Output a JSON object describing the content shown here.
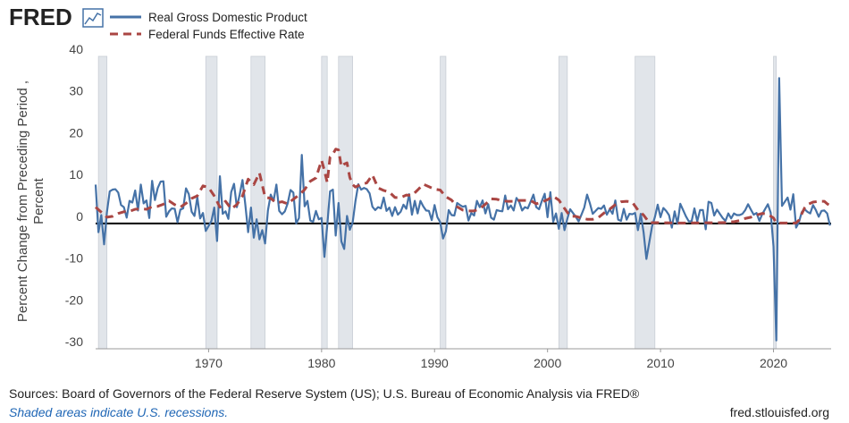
{
  "chart_data": {
    "type": "line",
    "logo": "FRED",
    "ylabel_lines": [
      "Percent Change from Preceding Period ,",
      "Percent"
    ],
    "source": "Sources: Board of Governors of the Federal Reserve System (US); U.S. Bureau of Economic Analysis via FRED®",
    "note": "Shaded areas indicate U.S. recessions.",
    "url": "fred.stlouisfed.org",
    "xlim": [
      1960,
      2025.1
    ],
    "xticks": [
      1970,
      1980,
      1990,
      2000,
      2010,
      2020
    ],
    "ylim": [
      -30,
      40
    ],
    "yticks": [
      -30,
      -20,
      -10,
      0,
      10,
      20,
      30,
      40
    ],
    "zero_line": true,
    "recession_color": "#e1e5ea",
    "recessions": [
      [
        1960.25,
        1961.0
      ],
      [
        1969.75,
        1970.75
      ],
      [
        1973.75,
        1975.0
      ],
      [
        1980.0,
        1980.5
      ],
      [
        1981.5,
        1982.75
      ],
      [
        1990.5,
        1991.0
      ],
      [
        2001.0,
        2001.75
      ],
      [
        2007.75,
        2009.5
      ],
      [
        2020.0,
        2020.25
      ]
    ],
    "series": [
      {
        "name": "Real Gross Domestic Product",
        "color": "#4572a7",
        "dashed": false,
        "x": [
          1960,
          1960.25,
          1960.5,
          1960.75,
          1961,
          1961.25,
          1961.5,
          1961.75,
          1962,
          1962.25,
          1962.5,
          1962.75,
          1963,
          1963.25,
          1963.5,
          1963.75,
          1964,
          1964.25,
          1964.5,
          1964.75,
          1965,
          1965.25,
          1965.5,
          1965.75,
          1966,
          1966.25,
          1966.5,
          1966.75,
          1967,
          1967.25,
          1967.5,
          1967.75,
          1968,
          1968.25,
          1968.5,
          1968.75,
          1969,
          1969.25,
          1969.5,
          1969.75,
          1970,
          1970.25,
          1970.5,
          1970.75,
          1971,
          1971.25,
          1971.5,
          1971.75,
          1972,
          1972.25,
          1972.5,
          1972.75,
          1973,
          1973.25,
          1973.5,
          1973.75,
          1974,
          1974.25,
          1974.5,
          1974.75,
          1975,
          1975.25,
          1975.5,
          1975.75,
          1976,
          1976.25,
          1976.5,
          1976.75,
          1977,
          1977.25,
          1977.5,
          1977.75,
          1978,
          1978.25,
          1978.5,
          1978.75,
          1979,
          1979.25,
          1979.5,
          1979.75,
          1980,
          1980.25,
          1980.5,
          1980.75,
          1981,
          1981.25,
          1981.5,
          1981.75,
          1982,
          1982.25,
          1982.5,
          1982.75,
          1983,
          1983.25,
          1983.5,
          1983.75,
          1984,
          1984.25,
          1984.5,
          1984.75,
          1985,
          1985.25,
          1985.5,
          1985.75,
          1986,
          1986.25,
          1986.5,
          1986.75,
          1987,
          1987.25,
          1987.5,
          1987.75,
          1988,
          1988.25,
          1988.5,
          1988.75,
          1989,
          1989.25,
          1989.5,
          1989.75,
          1990,
          1990.25,
          1990.5,
          1990.75,
          1991,
          1991.25,
          1991.5,
          1991.75,
          1992,
          1992.25,
          1992.5,
          1992.75,
          1993,
          1993.25,
          1993.5,
          1993.75,
          1994,
          1994.25,
          1994.5,
          1994.75,
          1995,
          1995.25,
          1995.5,
          1995.75,
          1996,
          1996.25,
          1996.5,
          1996.75,
          1997,
          1997.25,
          1997.5,
          1997.75,
          1998,
          1998.25,
          1998.5,
          1998.75,
          1999,
          1999.25,
          1999.5,
          1999.75,
          2000,
          2000.25,
          2000.5,
          2000.75,
          2001,
          2001.25,
          2001.5,
          2001.75,
          2002,
          2002.25,
          2002.5,
          2002.75,
          2003,
          2003.25,
          2003.5,
          2003.75,
          2004,
          2004.25,
          2004.5,
          2004.75,
          2005,
          2005.25,
          2005.5,
          2005.75,
          2006,
          2006.25,
          2006.5,
          2006.75,
          2007,
          2007.25,
          2007.5,
          2007.75,
          2008,
          2008.25,
          2008.5,
          2008.75,
          2009,
          2009.25,
          2009.5,
          2009.75,
          2010,
          2010.25,
          2010.5,
          2010.75,
          2011,
          2011.25,
          2011.5,
          2011.75,
          2012,
          2012.25,
          2012.5,
          2012.75,
          2013,
          2013.25,
          2013.5,
          2013.75,
          2014,
          2014.25,
          2014.5,
          2014.75,
          2015,
          2015.25,
          2015.5,
          2015.75,
          2016,
          2016.25,
          2016.5,
          2016.75,
          2017,
          2017.25,
          2017.5,
          2017.75,
          2018,
          2018.25,
          2018.5,
          2018.75,
          2019,
          2019.25,
          2019.5,
          2019.75,
          2020,
          2020.25,
          2020.5,
          2020.75,
          2021,
          2021.25,
          2021.5,
          2021.75,
          2022,
          2022.25,
          2022.5,
          2022.75,
          2023,
          2023.25,
          2023.5,
          2023.75,
          2024,
          2024.25,
          2024.5,
          2024.75,
          2025
        ],
        "values": [
          9.3,
          -2.1,
          2.0,
          -5.0,
          2.7,
          7.7,
          8.1,
          8.2,
          7.4,
          4.4,
          3.9,
          1.4,
          5.4,
          5.0,
          7.9,
          3.1,
          9.3,
          4.8,
          5.5,
          1.3,
          10.2,
          5.6,
          8.5,
          10.0,
          10.1,
          1.6,
          2.9,
          3.6,
          3.5,
          0.3,
          3.3,
          3.6,
          8.4,
          7.0,
          2.8,
          1.8,
          6.3,
          1.2,
          2.5,
          -1.8,
          -0.6,
          0.6,
          3.8,
          -4.2,
          11.3,
          2.3,
          2.9,
          1.1,
          7.5,
          9.5,
          3.9,
          6.9,
          10.4,
          4.5,
          -2.1,
          3.8,
          -3.4,
          1.0,
          -3.8,
          -1.6,
          -4.8,
          3.1,
          6.9,
          5.4,
          9.3,
          3.0,
          2.2,
          2.9,
          4.8,
          8.0,
          7.4,
          0.0,
          1.3,
          16.4,
          4.1,
          5.4,
          0.7,
          0.4,
          3.0,
          1.0,
          1.3,
          -8.0,
          -0.5,
          7.7,
          8.1,
          -2.9,
          4.9,
          -4.3,
          -6.1,
          1.8,
          -1.5,
          0.2,
          5.4,
          9.4,
          8.1,
          8.5,
          8.2,
          7.2,
          4.0,
          3.2,
          3.9,
          3.6,
          6.2,
          3.0,
          3.8,
          1.8,
          3.9,
          2.1,
          2.8,
          4.5,
          3.5,
          7.0,
          2.1,
          5.4,
          2.4,
          5.4,
          4.1,
          3.1,
          3.0,
          0.8,
          4.4,
          1.5,
          0.3,
          -3.6,
          -1.9,
          3.2,
          2.0,
          1.9,
          4.9,
          4.4,
          4.0,
          4.2,
          0.7,
          2.5,
          1.9,
          5.4,
          3.9,
          5.5,
          2.4,
          4.6,
          1.4,
          0.9,
          3.2,
          3.0,
          2.9,
          6.7,
          3.4,
          4.3,
          3.1,
          6.1,
          5.1,
          3.1,
          3.9,
          3.6,
          5.2,
          6.9,
          3.9,
          3.4,
          5.4,
          7.1,
          1.5,
          7.5,
          0.4,
          2.4,
          -1.3,
          2.5,
          -1.6,
          1.1,
          3.4,
          2.5,
          1.6,
          0.5,
          2.1,
          3.8,
          6.9,
          4.8,
          2.3,
          3.0,
          3.7,
          3.5,
          4.3,
          2.1,
          3.4,
          2.3,
          5.5,
          0.9,
          0.6,
          3.5,
          0.9,
          2.3,
          2.2,
          2.5,
          -1.6,
          2.3,
          -2.1,
          -8.5,
          -4.6,
          -0.7,
          1.5,
          4.5,
          1.5,
          3.7,
          3.0,
          2.0,
          -1.0,
          2.9,
          -0.1,
          4.7,
          3.2,
          1.7,
          0.5,
          0.5,
          3.6,
          0.5,
          3.2,
          3.2,
          -1.4,
          5.2,
          4.9,
          1.9,
          3.3,
          2.3,
          1.3,
          0.6,
          2.4,
          1.2,
          2.4,
          2.0,
          2.0,
          2.3,
          3.2,
          4.6,
          3.3,
          2.1,
          2.5,
          0.6,
          2.2,
          3.4,
          4.6,
          2.6,
          -5.5,
          -28.0,
          34.8,
          4.2,
          5.2,
          6.2,
          3.3,
          7.0,
          -1.0,
          0.3,
          2.7,
          3.4,
          2.8,
          2.4,
          4.4,
          3.2,
          1.6,
          3.0,
          3.1,
          2.4,
          -0.5
        ]
      },
      {
        "name": "Federal Funds Effective Rate",
        "color": "#aa4643",
        "dashed": true,
        "x": [
          1960,
          1960.5,
          1961,
          1961.5,
          1962,
          1962.5,
          1963,
          1963.5,
          1964,
          1964.5,
          1965,
          1965.5,
          1966,
          1966.5,
          1967,
          1967.5,
          1968,
          1968.5,
          1969,
          1969.5,
          1970,
          1970.5,
          1971,
          1971.5,
          1972,
          1972.5,
          1973,
          1973.5,
          1974,
          1974.5,
          1975,
          1975.5,
          1976,
          1976.5,
          1977,
          1977.5,
          1978,
          1978.5,
          1979,
          1979.5,
          1980,
          1980.25,
          1980.5,
          1980.75,
          1981,
          1981.25,
          1981.5,
          1981.75,
          1982,
          1982.25,
          1982.5,
          1982.75,
          1983,
          1983.5,
          1984,
          1984.5,
          1985,
          1985.5,
          1986,
          1986.5,
          1987,
          1987.5,
          1988,
          1988.5,
          1989,
          1989.5,
          1990,
          1990.5,
          1991,
          1991.5,
          1992,
          1992.5,
          1993,
          1993.5,
          1994,
          1994.5,
          1995,
          1995.5,
          1996,
          1996.5,
          1997,
          1997.5,
          1998,
          1998.5,
          1999,
          1999.5,
          2000,
          2000.5,
          2001,
          2001.5,
          2002,
          2002.5,
          2003,
          2003.5,
          2004,
          2004.5,
          2005,
          2005.5,
          2006,
          2006.5,
          2007,
          2007.5,
          2008,
          2008.5,
          2009,
          2012,
          2015.75,
          2016,
          2016.5,
          2017,
          2017.5,
          2018,
          2018.5,
          2019,
          2019.5,
          2020,
          2020.25,
          2021,
          2022,
          2022.25,
          2022.5,
          2022.75,
          2023,
          2023.5,
          2024,
          2024.5,
          2024.75,
          2025
        ],
        "values": [
          3.9,
          2.7,
          1.5,
          1.7,
          2.4,
          2.8,
          2.9,
          3.4,
          3.5,
          3.4,
          4.0,
          4.1,
          4.6,
          5.4,
          4.5,
          3.9,
          4.8,
          6.0,
          6.6,
          9.0,
          8.6,
          6.6,
          3.9,
          5.3,
          3.5,
          4.5,
          6.6,
          10.6,
          9.3,
          12.1,
          6.3,
          6.0,
          4.9,
          5.2,
          4.7,
          5.8,
          6.8,
          8.1,
          10.1,
          10.9,
          15.1,
          12.7,
          9.8,
          15.9,
          16.6,
          17.8,
          17.6,
          13.6,
          14.2,
          14.5,
          11.0,
          9.3,
          8.7,
          9.4,
          9.7,
          11.6,
          8.5,
          7.9,
          7.5,
          6.2,
          6.2,
          6.8,
          6.7,
          8.0,
          9.4,
          8.8,
          8.2,
          8.0,
          6.4,
          5.6,
          4.0,
          3.2,
          3.0,
          3.0,
          3.5,
          4.6,
          5.9,
          5.8,
          5.4,
          5.3,
          5.3,
          5.5,
          5.5,
          5.5,
          4.7,
          5.1,
          5.7,
          6.5,
          5.6,
          3.6,
          1.7,
          1.7,
          1.3,
          1.0,
          1.0,
          1.4,
          2.5,
          3.4,
          4.5,
          5.2,
          5.3,
          5.1,
          3.2,
          2.0,
          0.2,
          0.1,
          0.2,
          0.4,
          0.4,
          0.7,
          1.2,
          1.5,
          2.0,
          2.4,
          2.2,
          1.3,
          0.1,
          0.1,
          0.1,
          0.8,
          2.3,
          3.7,
          4.5,
          5.1,
          5.3,
          5.3,
          4.7,
          4.3
        ]
      }
    ]
  }
}
